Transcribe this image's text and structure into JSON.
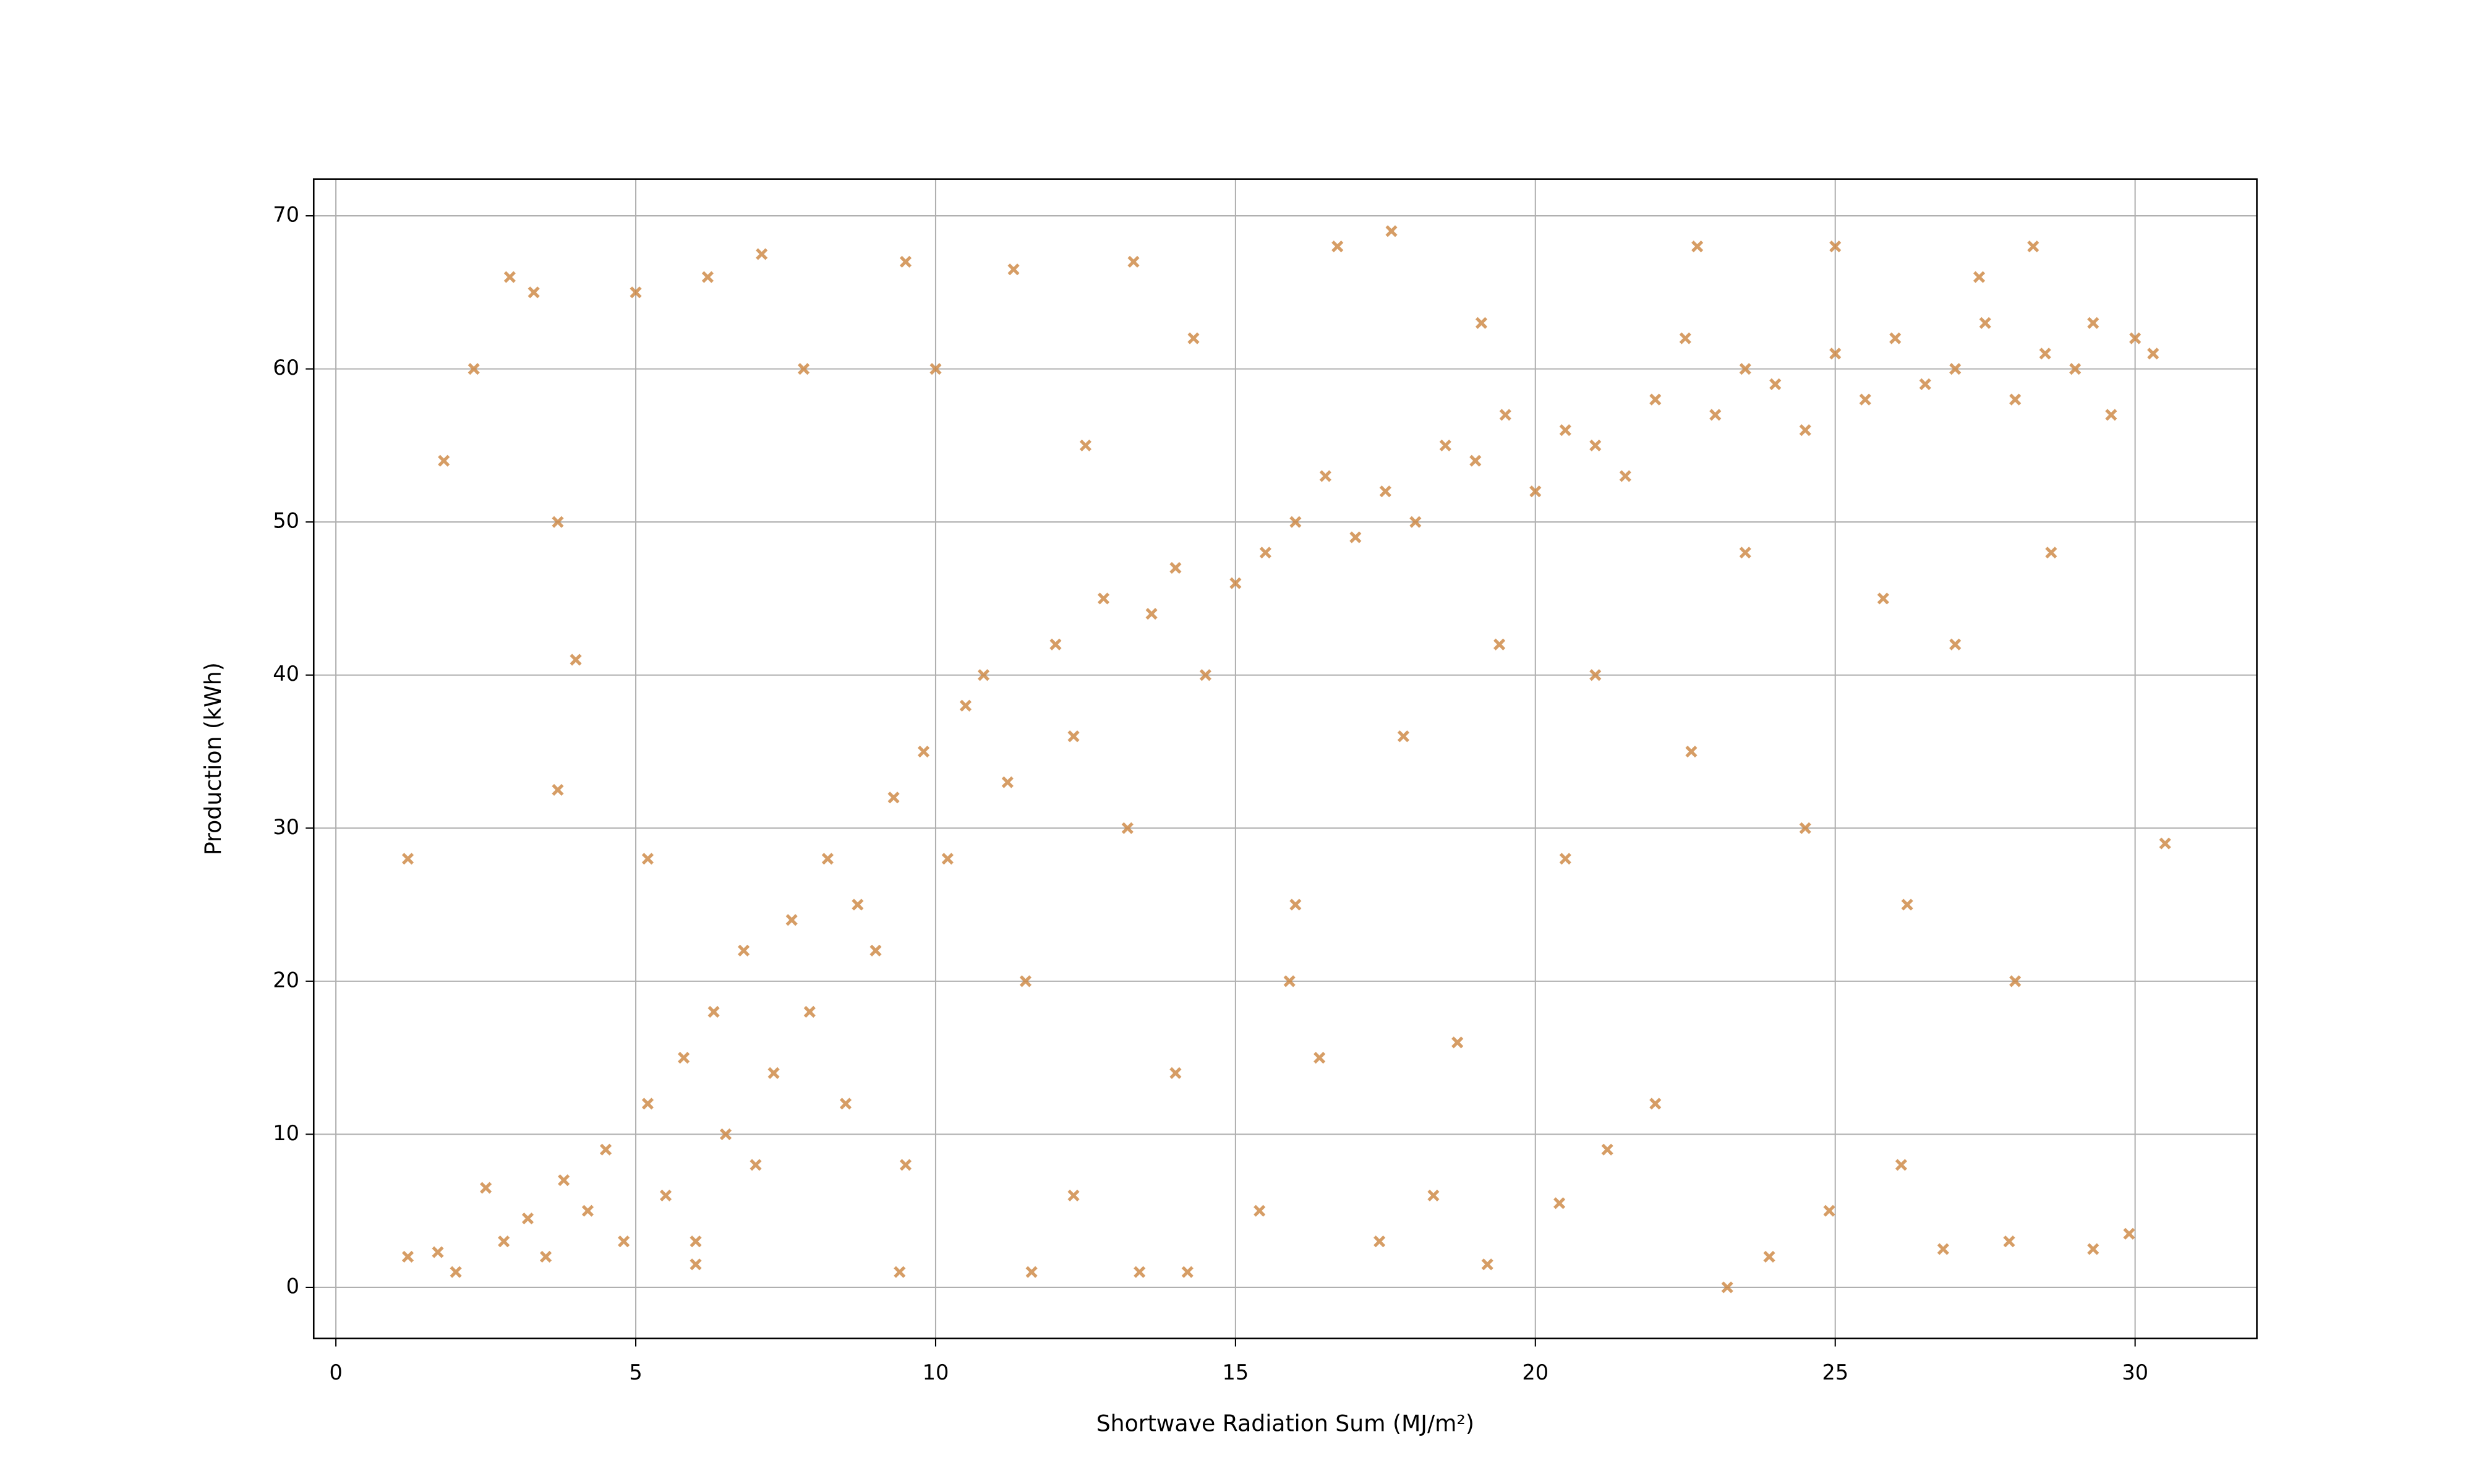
{
  "chart_data": {
    "type": "scatter",
    "xlabel": "Shortwave Radiation Sum (MJ/m²)",
    "ylabel": "Production (kWh)",
    "xlim": [
      -0.37,
      32.03
    ],
    "ylim": [
      -3.34,
      72.4
    ],
    "xticks": [
      0,
      5,
      10,
      15,
      20,
      25,
      30
    ],
    "yticks": [
      0,
      10,
      20,
      30,
      40,
      50,
      60,
      70
    ],
    "grid": true,
    "marker": "x",
    "series": [
      {
        "color": "#cd853f",
        "x": [
          1.2,
          1.7,
          2.0,
          2.5,
          2.8,
          3.2,
          3.5,
          3.8,
          4.2,
          4.5,
          4.8,
          5.2,
          5.5,
          5.8,
          6.0,
          6.3,
          6.5,
          6.8,
          7.0,
          7.3,
          7.6,
          7.9,
          8.2,
          8.5,
          8.7,
          9.0,
          9.3,
          9.5,
          9.8,
          10.2,
          10.5,
          10.8,
          11.2,
          11.5,
          12.0,
          12.3,
          12.8,
          13.2,
          13.6,
          14.0,
          14.5,
          15.0,
          15.5,
          16.0,
          16.5,
          17.0,
          17.5,
          18.0,
          18.5,
          19.0,
          19.5,
          20.0,
          20.5,
          21.0,
          21.5,
          22.0,
          22.5,
          23.0,
          23.5,
          24.0,
          24.5,
          25.0,
          25.5,
          26.0,
          26.5,
          27.0,
          27.5,
          28.0,
          28.5,
          29.0,
          29.3,
          29.6,
          30.0,
          30.3,
          1.2,
          1.8,
          2.3,
          2.9,
          3.3,
          3.7,
          3.7,
          4.0,
          5.0,
          6.2,
          7.1,
          9.5,
          11.3,
          13.3,
          16.7,
          17.6,
          19.1,
          22.7,
          25.0,
          27.4,
          28.3,
          5.2,
          7.8,
          10.0,
          12.5,
          14.3,
          16.0,
          17.4,
          18.3,
          19.2,
          20.4,
          21.2,
          22.0,
          23.2,
          23.9,
          24.9,
          26.1,
          26.8,
          27.9,
          29.3,
          30.5,
          29.9,
          28.0,
          26.2,
          24.5,
          22.6,
          21.0,
          19.4,
          17.8,
          15.9,
          14.0,
          12.3,
          11.6,
          13.4,
          14.2,
          9.4,
          6.0,
          20.5,
          25.8,
          28.6,
          27.0,
          23.5,
          18.7,
          15.4,
          16.4
        ],
        "values": [
          2,
          2.3,
          1,
          6.5,
          3,
          4.5,
          2,
          7,
          5,
          9,
          3,
          12,
          6,
          15,
          3,
          18,
          10,
          22,
          8,
          14,
          24,
          18,
          28,
          12,
          25,
          22,
          32,
          8,
          35,
          28,
          38,
          40,
          33,
          20,
          42,
          36,
          45,
          30,
          44,
          47,
          40,
          46,
          48,
          50,
          53,
          49,
          52,
          50,
          55,
          54,
          57,
          52,
          56,
          55,
          53,
          58,
          62,
          57,
          60,
          59,
          56,
          61,
          58,
          62,
          59,
          60,
          63,
          58,
          61,
          60,
          63,
          57,
          62,
          61,
          28,
          54,
          60,
          66,
          65,
          50,
          32.5,
          41,
          65,
          66,
          67.5,
          67,
          66.5,
          67,
          68,
          69,
          63,
          68,
          68,
          66,
          68,
          28,
          60,
          60,
          55,
          62,
          25,
          3,
          6,
          1.5,
          5.5,
          9,
          12,
          0,
          2,
          5,
          8,
          2.5,
          3,
          2.5,
          29,
          3.5,
          20,
          25,
          30,
          35,
          40,
          42,
          36,
          20,
          14,
          6,
          1,
          1,
          1,
          1,
          1.5,
          28,
          45,
          48,
          42,
          48,
          16,
          5,
          15
        ]
      }
    ]
  }
}
